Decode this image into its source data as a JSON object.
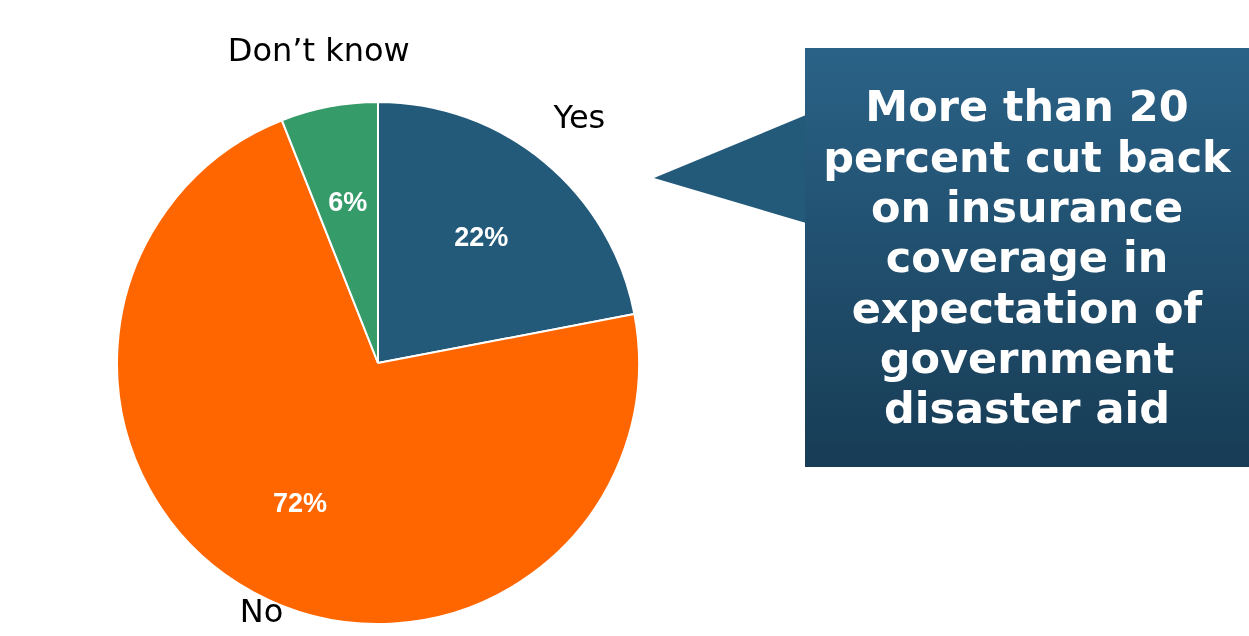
{
  "chart_data": {
    "type": "pie",
    "categories": [
      "Yes",
      "No",
      "Don’t know"
    ],
    "values": [
      22,
      72,
      6
    ],
    "colors": [
      "#235a7a",
      "#ff6600",
      "#359b69"
    ],
    "value_labels": [
      "22%",
      "72%",
      "6%"
    ],
    "legend": false,
    "annotations": [
      "More than 20 percent cut back on insurance coverage in expectation of government disaster aid"
    ]
  }
}
